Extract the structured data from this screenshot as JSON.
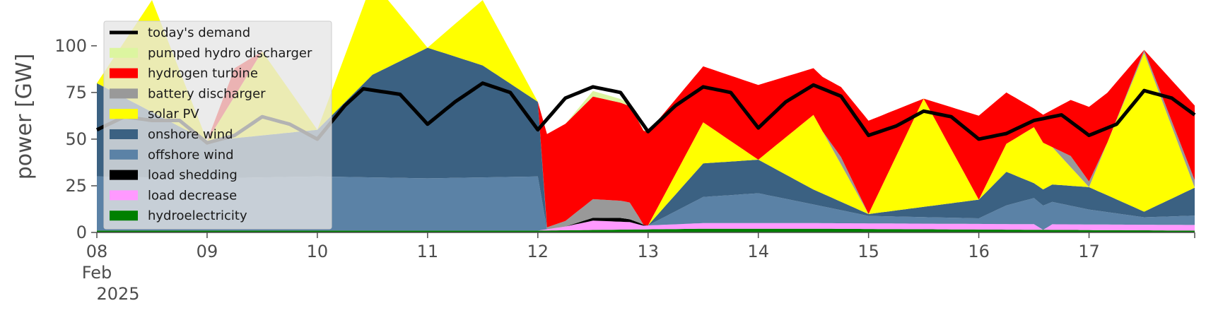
{
  "chart_data": {
    "type": "area",
    "ylabel": "power [GW]",
    "ylim": [
      0,
      120
    ],
    "yticks": [
      0,
      25,
      50,
      75,
      100
    ],
    "xlim": [
      "2025-02-08T00:00",
      "2025-02-17T23:00"
    ],
    "xticks": [
      {
        "date": "2025-02-08",
        "label": "08"
      },
      {
        "date": "2025-02-09",
        "label": "09"
      },
      {
        "date": "2025-02-10",
        "label": "10"
      },
      {
        "date": "2025-02-11",
        "label": "11"
      },
      {
        "date": "2025-02-12",
        "label": "12"
      },
      {
        "date": "2025-02-13",
        "label": "13"
      },
      {
        "date": "2025-02-14",
        "label": "14"
      },
      {
        "date": "2025-02-15",
        "label": "15"
      },
      {
        "date": "2025-02-16",
        "label": "16"
      },
      {
        "date": "2025-02-17",
        "label": "17"
      }
    ],
    "xtick_sublabel": {
      "month": "Feb",
      "year": "2025"
    },
    "legend_position": "upper-left",
    "background": "#ffffff",
    "series": [
      {
        "name": "hydroelectricity",
        "color": "#008000",
        "x": [
          "2025-02-08T00:00",
          "2025-02-12T00:00",
          "2025-02-13T12:00",
          "2025-02-14T12:00",
          "2025-02-17T23:00"
        ],
        "values": [
          1,
          1,
          2,
          2,
          1
        ]
      },
      {
        "name": "load decrease",
        "color": "#ff99ff",
        "x": [
          "2025-02-08T00:00",
          "2025-02-12T00:00",
          "2025-02-12T06:00",
          "2025-02-12T12:00",
          "2025-02-12T20:00",
          "2025-02-12T23:00",
          "2025-02-13T12:00",
          "2025-02-15T12:00",
          "2025-02-16T12:00",
          "2025-02-16T14:00",
          "2025-02-16T16:00",
          "2025-02-17T12:00",
          "2025-02-17T23:00"
        ],
        "values": [
          0,
          0,
          2,
          5,
          4,
          2,
          3,
          3,
          3,
          0,
          3,
          3,
          3
        ]
      },
      {
        "name": "load shedding",
        "color": "#000000",
        "x": [
          "2025-02-08T00:00",
          "2025-02-12T06:00",
          "2025-02-12T12:00",
          "2025-02-12T18:00",
          "2025-02-12T22:00",
          "2025-02-13T00:00",
          "2025-02-17T23:00"
        ],
        "values": [
          0,
          0,
          1.5,
          2,
          1,
          0,
          0
        ]
      },
      {
        "name": "offshore wind",
        "color": "#5b82a6",
        "x": [
          "2025-02-08T00:00",
          "2025-02-09T00:00",
          "2025-02-10T00:00",
          "2025-02-11T00:00",
          "2025-02-12T00:00",
          "2025-02-12T02:00",
          "2025-02-13T00:00",
          "2025-02-13T12:00",
          "2025-02-14T00:00",
          "2025-02-14T12:00",
          "2025-02-15T00:00",
          "2025-02-16T00:00",
          "2025-02-16T06:00",
          "2025-02-16T12:00",
          "2025-02-17T00:00",
          "2025-02-17T12:00",
          "2025-02-17T23:00"
        ],
        "values": [
          29,
          28,
          29,
          28,
          29,
          0,
          0,
          14,
          16,
          10,
          4,
          3,
          10,
          14,
          8,
          4,
          5
        ]
      },
      {
        "name": "onshore wind",
        "color": "#3b6182",
        "x": [
          "2025-02-08T00:00",
          "2025-02-09T00:00",
          "2025-02-10T00:00",
          "2025-02-10T12:00",
          "2025-02-11T00:00",
          "2025-02-11T12:00",
          "2025-02-12T00:00",
          "2025-02-12T02:00",
          "2025-02-13T00:00",
          "2025-02-13T12:00",
          "2025-02-14T00:00",
          "2025-02-14T12:00",
          "2025-02-15T00:00",
          "2025-02-16T00:00",
          "2025-02-16T06:00",
          "2025-02-16T12:00",
          "2025-02-17T00:00",
          "2025-02-17T12:00",
          "2025-02-17T23:00"
        ],
        "values": [
          50,
          20,
          25,
          55,
          70,
          60,
          40,
          0,
          0,
          18,
          18,
          8,
          1,
          10,
          18,
          8,
          12,
          3,
          15
        ]
      },
      {
        "name": "solar PV",
        "color": "#ffff00",
        "x": [
          "2025-02-08T00:00",
          "2025-02-08T12:00",
          "2025-02-09T00:00",
          "2025-02-09T12:00",
          "2025-02-10T00:00",
          "2025-02-10T12:00",
          "2025-02-11T00:00",
          "2025-02-11T12:00",
          "2025-02-12T00:00",
          "2025-02-13T00:00",
          "2025-02-13T12:00",
          "2025-02-14T00:00",
          "2025-02-14T12:00",
          "2025-02-15T00:00",
          "2025-02-15T12:00",
          "2025-02-16T00:00",
          "2025-02-16T12:00",
          "2025-02-17T00:00",
          "2025-02-17T12:00",
          "2025-02-17T23:00"
        ],
        "values": [
          0,
          60,
          0,
          45,
          0,
          50,
          0,
          35,
          0,
          0,
          22,
          0,
          40,
          0,
          58,
          0,
          30,
          0,
          85,
          0
        ]
      },
      {
        "name": "battery discharger",
        "color": "#999999",
        "x": [
          "2025-02-08T00:00",
          "2025-02-12T00:00",
          "2025-02-12T06:00",
          "2025-02-12T12:00",
          "2025-02-12T20:00",
          "2025-02-12T23:00",
          "2025-02-14T14:00",
          "2025-02-14T18:00",
          "2025-02-15T00:00",
          "2025-02-16T16:00",
          "2025-02-16T20:00",
          "2025-02-17T04:00",
          "2025-02-17T23:00"
        ],
        "values": [
          0,
          0,
          3,
          10,
          9,
          0,
          0,
          4,
          0,
          0,
          6,
          0,
          4
        ]
      },
      {
        "name": "hydrogen turbine",
        "color": "#ff0000",
        "x": [
          "2025-02-08T00:00",
          "2025-02-09T00:00",
          "2025-02-09T06:00",
          "2025-02-09T12:00",
          "2025-02-10T00:00",
          "2025-02-12T00:00",
          "2025-02-12T02:00",
          "2025-02-12T12:00",
          "2025-02-13T00:00",
          "2025-02-13T12:00",
          "2025-02-14T00:00",
          "2025-02-14T12:00",
          "2025-02-15T00:00",
          "2025-02-15T12:00",
          "2025-02-16T00:00",
          "2025-02-16T12:00",
          "2025-02-17T00:00",
          "2025-02-17T12:00",
          "2025-02-17T23:00"
        ],
        "values": [
          0,
          0,
          15,
          0,
          0,
          0,
          50,
          55,
          50,
          30,
          40,
          25,
          50,
          0,
          45,
          10,
          40,
          0,
          40
        ]
      },
      {
        "name": "pumped hydro discharger",
        "color": "#dcf5a0",
        "x": [
          "2025-02-08T00:00",
          "2025-02-12T06:00",
          "2025-02-12T12:00",
          "2025-02-12T18:00",
          "2025-02-13T00:00",
          "2025-02-17T23:00"
        ],
        "values": [
          0,
          0,
          3,
          2,
          0,
          0
        ]
      },
      {
        "name": "today's demand",
        "color": "#000000",
        "style": "line",
        "x": [
          "2025-02-08T00:00",
          "2025-02-08T06:00",
          "2025-02-08T12:00",
          "2025-02-08T18:00",
          "2025-02-09T00:00",
          "2025-02-09T06:00",
          "2025-02-09T12:00",
          "2025-02-09T18:00",
          "2025-02-10T00:00",
          "2025-02-10T06:00",
          "2025-02-10T10:00",
          "2025-02-10T18:00",
          "2025-02-11T00:00",
          "2025-02-11T06:00",
          "2025-02-11T12:00",
          "2025-02-11T18:00",
          "2025-02-12T00:00",
          "2025-02-12T06:00",
          "2025-02-12T12:00",
          "2025-02-12T18:00",
          "2025-02-13T00:00",
          "2025-02-13T06:00",
          "2025-02-13T12:00",
          "2025-02-13T18:00",
          "2025-02-14T00:00",
          "2025-02-14T06:00",
          "2025-02-14T12:00",
          "2025-02-14T18:00",
          "2025-02-15T00:00",
          "2025-02-15T06:00",
          "2025-02-15T12:00",
          "2025-02-15T18:00",
          "2025-02-16T00:00",
          "2025-02-16T06:00",
          "2025-02-16T12:00",
          "2025-02-16T18:00",
          "2025-02-17T00:00",
          "2025-02-17T06:00",
          "2025-02-17T12:00",
          "2025-02-17T18:00",
          "2025-02-17T23:00"
        ],
        "values": [
          55,
          62,
          60,
          60,
          48,
          52,
          62,
          58,
          50,
          68,
          77,
          74,
          58,
          70,
          80,
          75,
          55,
          72,
          78,
          75,
          54,
          68,
          78,
          75,
          56,
          70,
          79,
          73,
          52,
          57,
          65,
          62,
          50,
          53,
          60,
          63,
          52,
          58,
          76,
          72,
          63
        ]
      }
    ],
    "legend": [
      {
        "label": "today's demand",
        "color": "#000000",
        "kind": "line"
      },
      {
        "label": "pumped hydro discharger",
        "color": "#dcf5a0",
        "kind": "patch"
      },
      {
        "label": "hydrogen turbine",
        "color": "#ff0000",
        "kind": "patch"
      },
      {
        "label": "battery discharger",
        "color": "#999999",
        "kind": "patch"
      },
      {
        "label": "solar PV",
        "color": "#ffff00",
        "kind": "patch"
      },
      {
        "label": "onshore wind",
        "color": "#3b6182",
        "kind": "patch"
      },
      {
        "label": "offshore wind",
        "color": "#5b82a6",
        "kind": "patch"
      },
      {
        "label": "load shedding",
        "color": "#000000",
        "kind": "patch"
      },
      {
        "label": "load decrease",
        "color": "#ff99ff",
        "kind": "patch"
      },
      {
        "label": "hydroelectricity",
        "color": "#008000",
        "kind": "patch"
      }
    ]
  }
}
